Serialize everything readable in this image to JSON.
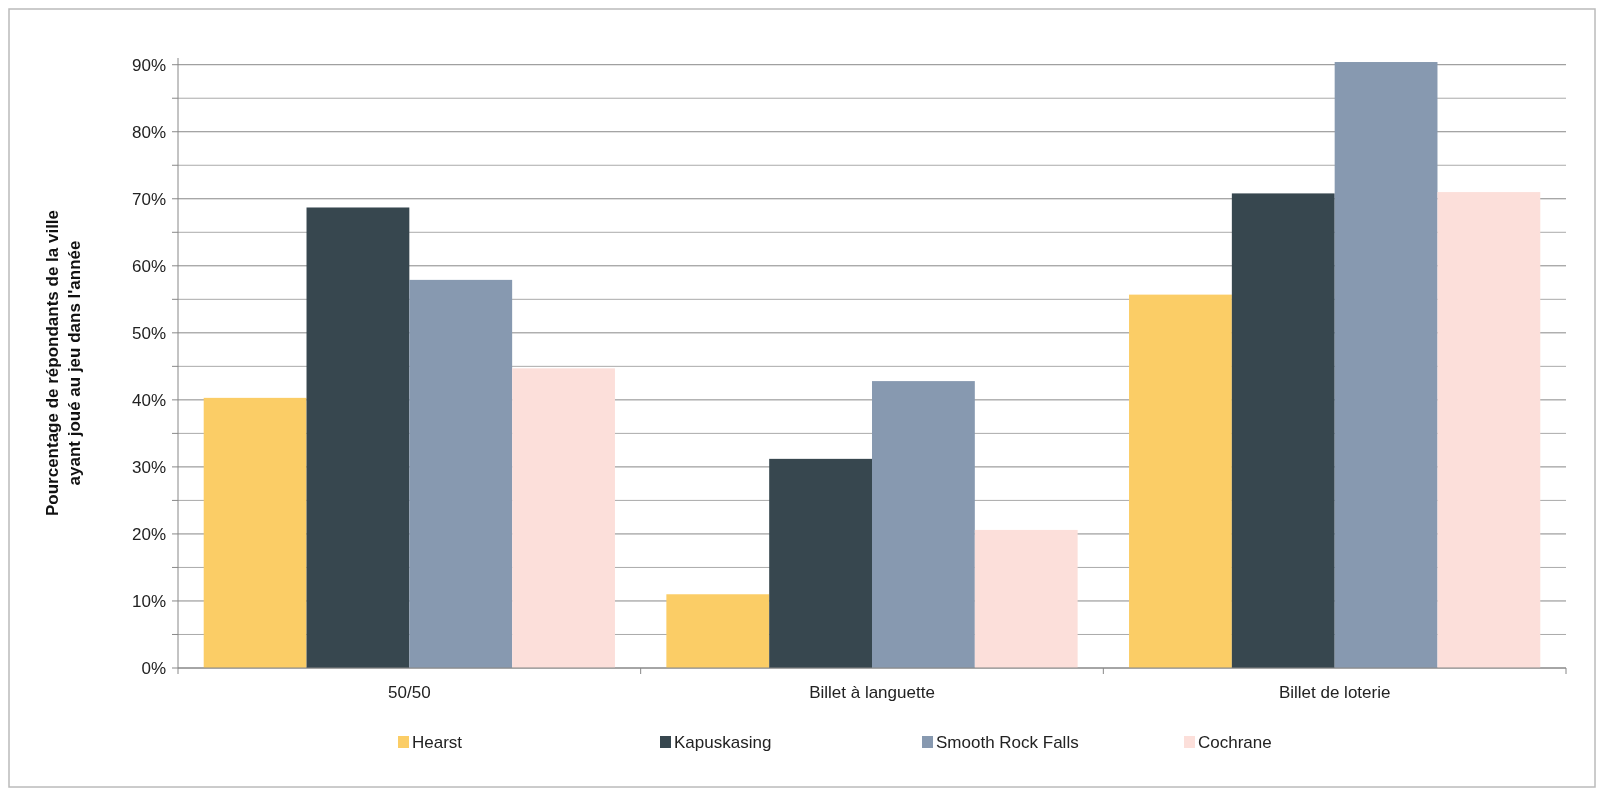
{
  "chart_data": {
    "type": "bar",
    "ylabel": "Pourcentage de répondants de la ville\nayant joué au jeu dans l'année",
    "categories": [
      "50/50",
      "Billet à languette",
      "Billet de loterie"
    ],
    "series": [
      {
        "name": "Hearst",
        "color": "#fbcd66",
        "values": [
          40.3,
          11,
          55.7
        ]
      },
      {
        "name": "Kapuskasing",
        "color": "#37474f",
        "values": [
          68.7,
          31.2,
          70.8
        ]
      },
      {
        "name": "Smooth Rock Falls",
        "color": "#8799b0",
        "values": [
          57.9,
          42.8,
          90.4
        ]
      },
      {
        "name": "Cochrane",
        "color": "#fcdfda",
        "values": [
          44.7,
          20.6,
          71
        ]
      }
    ],
    "ylim": [
      0,
      91
    ],
    "yticks": [
      {
        "value": 0,
        "label": "0%"
      },
      {
        "value": 5,
        "label": null
      },
      {
        "value": 10,
        "label": "10%"
      },
      {
        "value": 15,
        "label": null
      },
      {
        "value": 20,
        "label": "20%"
      },
      {
        "value": 25,
        "label": null
      },
      {
        "value": 30,
        "label": "30%"
      },
      {
        "value": 35,
        "label": null
      },
      {
        "value": 40,
        "label": "40%"
      },
      {
        "value": 45,
        "label": null
      },
      {
        "value": 50,
        "label": "50%"
      },
      {
        "value": 55,
        "label": null
      },
      {
        "value": 60,
        "label": "60%"
      },
      {
        "value": 65,
        "label": null
      },
      {
        "value": 70,
        "label": "70%"
      },
      {
        "value": 75,
        "label": null
      },
      {
        "value": 80,
        "label": "80%"
      },
      {
        "value": 85,
        "label": null
      },
      {
        "value": 90,
        "label": "90%"
      }
    ],
    "grid": "y",
    "legend": "bottom"
  }
}
